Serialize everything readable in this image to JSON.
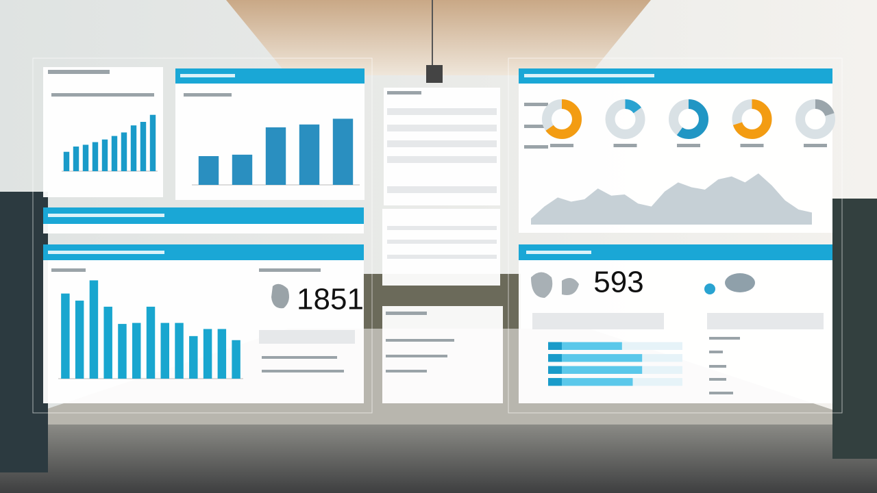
{
  "kpis": [
    1851,
    593
  ],
  "chart_data": [
    {
      "type": "bar",
      "values": [
        22,
        28,
        30,
        33,
        36,
        40,
        44,
        52,
        56,
        64
      ],
      "ylim": [
        0,
        70
      ],
      "color": "#1a9bc9"
    },
    {
      "type": "bar",
      "values": [
        40,
        42,
        80,
        84,
        92
      ],
      "ylim": [
        0,
        100
      ],
      "color": "#2a8fc0"
    },
    {
      "type": "bar",
      "values": [
        84,
        77,
        97,
        71,
        54,
        55,
        71,
        55,
        55,
        42,
        49,
        49,
        38
      ],
      "ylim": [
        0,
        100
      ],
      "color": "#19a6cf"
    },
    {
      "type": "donut",
      "values": [
        65,
        15,
        60,
        70,
        20
      ],
      "colors": [
        "#f39c12",
        "#29a3d1",
        "#2196c4",
        "#f39c12",
        "#9aa5ab"
      ],
      "ylim": [
        0,
        100
      ]
    },
    {
      "type": "area",
      "values": [
        10,
        30,
        45,
        38,
        42,
        60,
        48,
        50,
        35,
        30,
        55,
        70,
        62,
        58,
        75,
        80,
        70,
        85,
        65,
        40,
        25,
        20
      ],
      "ylim": [
        0,
        100
      ],
      "color": "#b8c4cc"
    },
    {
      "type": "hbar",
      "values": [
        55,
        70,
        70,
        63
      ],
      "xlim": [
        0,
        100
      ],
      "color": "#5bc8ea"
    }
  ]
}
